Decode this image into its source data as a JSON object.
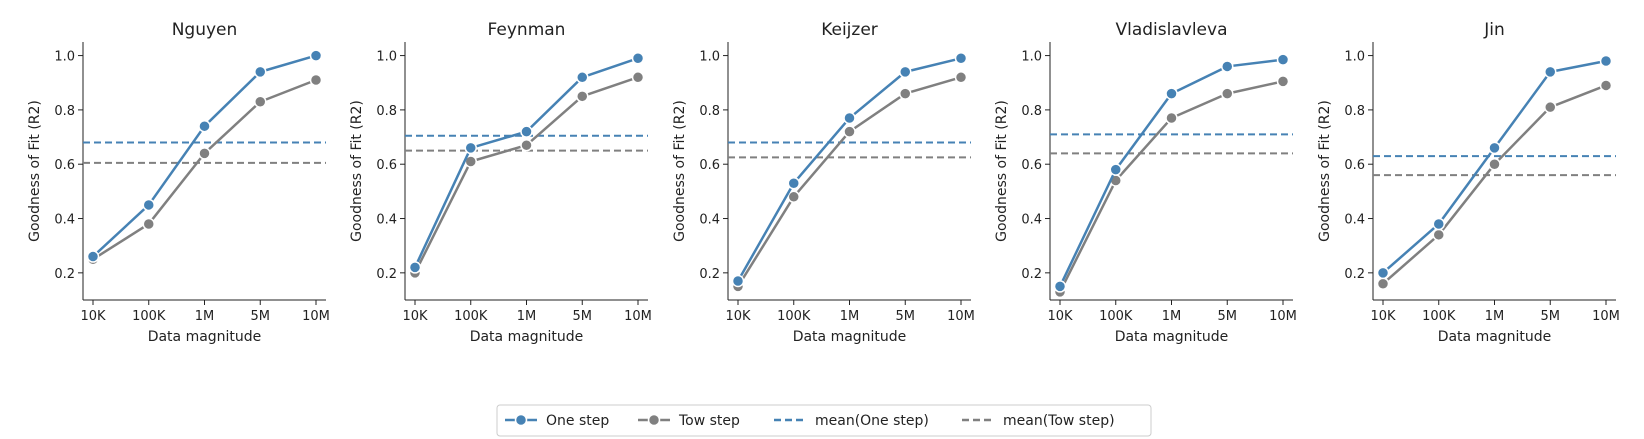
{
  "chart_data": {
    "type": "line",
    "categories": [
      "10K",
      "100K",
      "1M",
      "5M",
      "10M"
    ],
    "xlabel": "Data magnitude",
    "ylabel": "Goodness of Fit (R2)",
    "ylim": [
      0.1,
      1.05
    ],
    "yticks": [
      0.2,
      0.4,
      0.6,
      0.8,
      1.0
    ],
    "ytick_labels": [
      "0.2",
      "0.4",
      "0.6",
      "0.8",
      "1.0"
    ],
    "colors": {
      "one_step": "#4682b4",
      "tow_step": "#808080"
    },
    "legend": {
      "position": "bottom-center",
      "entries": [
        "One step",
        "Tow step",
        "mean(One step)",
        "mean(Tow step)"
      ]
    },
    "panels": [
      {
        "title": "Nguyen",
        "series": [
          {
            "name": "One step",
            "values": [
              0.26,
              0.45,
              0.74,
              0.94,
              1.0
            ]
          },
          {
            "name": "Tow step",
            "values": [
              0.25,
              0.38,
              0.64,
              0.83,
              0.91
            ]
          }
        ],
        "mean_one_step": 0.68,
        "mean_tow_step": 0.605
      },
      {
        "title": "Feynman",
        "series": [
          {
            "name": "One step",
            "values": [
              0.22,
              0.66,
              0.72,
              0.92,
              0.99
            ]
          },
          {
            "name": "Tow step",
            "values": [
              0.2,
              0.61,
              0.67,
              0.85,
              0.92
            ]
          }
        ],
        "mean_one_step": 0.705,
        "mean_tow_step": 0.65
      },
      {
        "title": "Keijzer",
        "series": [
          {
            "name": "One step",
            "values": [
              0.17,
              0.53,
              0.77,
              0.94,
              0.99
            ]
          },
          {
            "name": "Tow step",
            "values": [
              0.15,
              0.48,
              0.72,
              0.86,
              0.92
            ]
          }
        ],
        "mean_one_step": 0.68,
        "mean_tow_step": 0.625
      },
      {
        "title": "Vladislavleva",
        "series": [
          {
            "name": "One step",
            "values": [
              0.15,
              0.58,
              0.86,
              0.96,
              0.985
            ]
          },
          {
            "name": "Tow step",
            "values": [
              0.13,
              0.54,
              0.77,
              0.86,
              0.905
            ]
          }
        ],
        "mean_one_step": 0.71,
        "mean_tow_step": 0.64
      },
      {
        "title": "Jin",
        "series": [
          {
            "name": "One step",
            "values": [
              0.2,
              0.38,
              0.66,
              0.94,
              0.98
            ]
          },
          {
            "name": "Tow step",
            "values": [
              0.16,
              0.34,
              0.6,
              0.81,
              0.89
            ]
          }
        ],
        "mean_one_step": 0.63,
        "mean_tow_step": 0.56
      }
    ]
  }
}
